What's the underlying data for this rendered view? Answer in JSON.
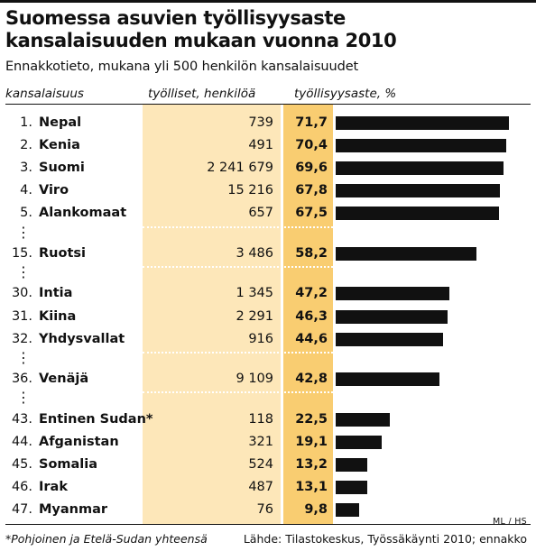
{
  "title_lines": [
    "Suomessa asuvien työllisyysaste",
    "kansalaisuuden mukaan vuonna 2010"
  ],
  "subtitle": "Ennakkotieto, mukana yli 500 henkilön kansalaisuudet",
  "headers": {
    "country": "kansalaisuus",
    "workers": "työlliset, henkilöä",
    "rate": "työllisyysaste, %"
  },
  "credit": "ML / HS",
  "footnote": "*Pohjoinen ja Etelä-Sudan yhteensä",
  "source": "Lähde: Tilastokeskus, Työssäkäynti 2010; ennakko",
  "colors": {
    "workers_column": "#fde7b9",
    "rate_column": "#f9cd71",
    "bar": "#111111"
  },
  "chart_data": {
    "type": "bar",
    "orientation": "horizontal",
    "categories": [
      "Nepal",
      "Kenia",
      "Suomi",
      "Viro",
      "Alankomaat",
      "Ruotsi",
      "Intia",
      "Kiina",
      "Yhdysvallat",
      "Venäjä",
      "Entinen Sudan*",
      "Afganistan",
      "Somalia",
      "Irak",
      "Myanmar"
    ],
    "ranks": [
      "1.",
      "2.",
      "3.",
      "4.",
      "5.",
      "15.",
      "30.",
      "31.",
      "32.",
      "36.",
      "43.",
      "44.",
      "45.",
      "46.",
      "47."
    ],
    "workers_labels": [
      "739",
      "491",
      "2 241 679",
      "15 216",
      "657",
      "3 486",
      "1 345",
      "2 291",
      "916",
      "9 109",
      "118",
      "321",
      "524",
      "487",
      "76"
    ],
    "workers": [
      739,
      491,
      2241679,
      15216,
      657,
      3486,
      1345,
      2291,
      916,
      9109,
      118,
      321,
      524,
      487,
      76
    ],
    "value_labels": [
      "71,7",
      "70,4",
      "69,6",
      "67,8",
      "67,5",
      "58,2",
      "47,2",
      "46,3",
      "44,6",
      "42,8",
      "22,5",
      "19,1",
      "13,2",
      "13,1",
      "9,8"
    ],
    "values": [
      71.7,
      70.4,
      69.6,
      67.8,
      67.5,
      58.2,
      47.2,
      46.3,
      44.6,
      42.8,
      22.5,
      19.1,
      13.2,
      13.1,
      9.8
    ],
    "gaps_after": [
      4,
      5,
      8,
      9
    ],
    "xlim": [
      0,
      71.7
    ]
  }
}
